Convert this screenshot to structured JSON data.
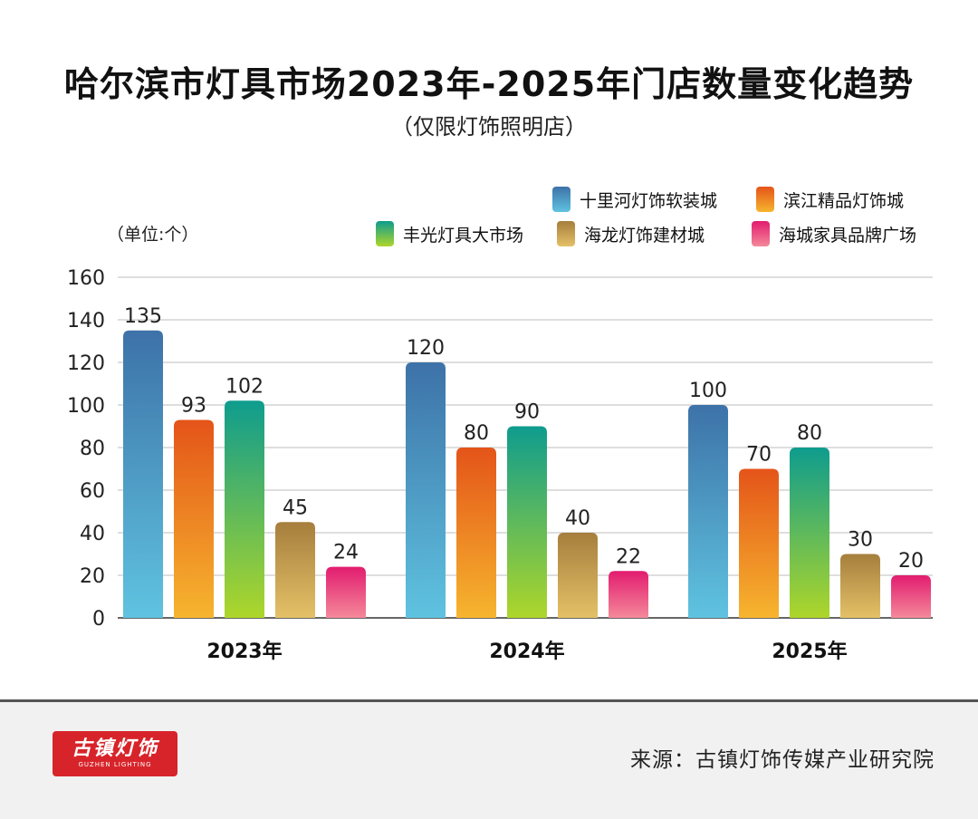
{
  "chart_data": {
    "type": "bar",
    "title": "哈尔滨市灯具市场2023年-2025年门店数量变化趋势",
    "subtitle": "（仅限灯饰照明店）",
    "ylabel": "（单位:个）",
    "xlabel": "",
    "categories": [
      "2023年",
      "2024年",
      "2025年"
    ],
    "ylim": [
      0,
      160
    ],
    "yticks": [
      0,
      20,
      40,
      60,
      80,
      100,
      120,
      140,
      160
    ],
    "grid": true,
    "legend_position": "top-right",
    "series": [
      {
        "name": "十里河灯饰软装城",
        "values": [
          135,
          120,
          100
        ],
        "color_top": "#3d72a8",
        "color_bottom": "#5fc3e0"
      },
      {
        "name": "滨江精品灯饰城",
        "values": [
          93,
          80,
          70
        ],
        "color_top": "#e45419",
        "color_bottom": "#f6b52e"
      },
      {
        "name": "丰光灯具大市场",
        "values": [
          102,
          90,
          80
        ],
        "color_top": "#0e9c8e",
        "color_bottom": "#aed62a"
      },
      {
        "name": "海龙灯饰建材城",
        "values": [
          45,
          40,
          30
        ],
        "color_top": "#a67e3d",
        "color_bottom": "#e4c167"
      },
      {
        "name": "海城家具品牌广场",
        "values": [
          24,
          22,
          20
        ],
        "color_top": "#e21c6f",
        "color_bottom": "#f4899a"
      }
    ]
  },
  "footer": {
    "logo_text": "古镇灯饰",
    "logo_subtext": "GUZHEN LIGHTING",
    "source": "来源：古镇灯饰传媒产业研究院"
  }
}
